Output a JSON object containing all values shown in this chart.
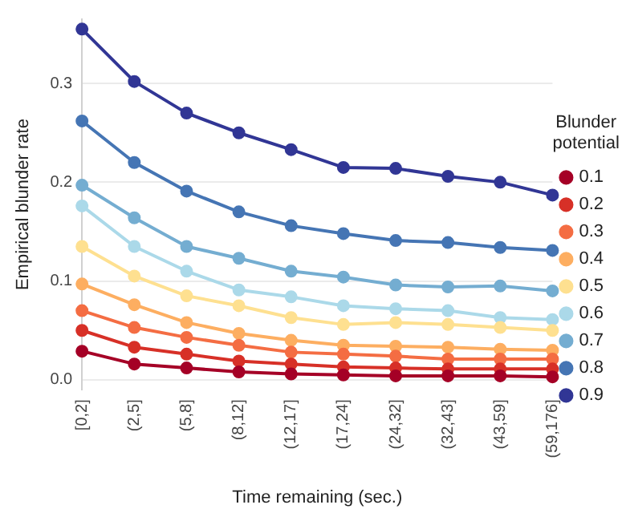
{
  "chart_data": {
    "type": "line",
    "xlabel": "Time remaining (sec.)",
    "ylabel": "Empirical blunder rate",
    "legend_title": "Blunder potential",
    "legend": "right",
    "grid": "y",
    "marker": "circle",
    "line_style": "solid",
    "categories": [
      "[0,2]",
      "(2,5]",
      "(5,8]",
      "(8,12]",
      "(12,17]",
      "(17,24]",
      "(24,32]",
      "(32,43]",
      "(43,59]",
      "(59,176]"
    ],
    "ylim": [
      -0.01,
      0.365
    ],
    "yticks": [
      {
        "value": 0,
        "label": "0.0"
      },
      0.1,
      0.2,
      0.3
    ],
    "series": [
      {
        "name": "0.1",
        "color": "#a50026",
        "values": [
          0.029,
          0.016,
          0.012,
          0.008,
          0.006,
          0.005,
          0.004,
          0.004,
          0.004,
          0.003
        ]
      },
      {
        "name": "0.2",
        "color": "#d73027",
        "values": [
          0.05,
          0.033,
          0.026,
          0.019,
          0.016,
          0.013,
          0.012,
          0.011,
          0.011,
          0.011
        ]
      },
      {
        "name": "0.3",
        "color": "#f46d43",
        "values": [
          0.07,
          0.053,
          0.043,
          0.035,
          0.028,
          0.026,
          0.024,
          0.021,
          0.021,
          0.021
        ]
      },
      {
        "name": "0.4",
        "color": "#fdae61",
        "values": [
          0.097,
          0.076,
          0.058,
          0.047,
          0.04,
          0.035,
          0.034,
          0.033,
          0.031,
          0.03
        ]
      },
      {
        "name": "0.5",
        "color": "#fee090",
        "values": [
          0.135,
          0.105,
          0.085,
          0.075,
          0.063,
          0.056,
          0.058,
          0.056,
          0.053,
          0.05
        ]
      },
      {
        "name": "0.6",
        "color": "#abd9e9",
        "values": [
          0.176,
          0.135,
          0.11,
          0.091,
          0.084,
          0.075,
          0.072,
          0.07,
          0.063,
          0.061
        ]
      },
      {
        "name": "0.7",
        "color": "#74add1",
        "values": [
          0.197,
          0.164,
          0.135,
          0.123,
          0.11,
          0.104,
          0.096,
          0.094,
          0.095,
          0.09
        ]
      },
      {
        "name": "0.8",
        "color": "#4575b4",
        "values": [
          0.262,
          0.22,
          0.191,
          0.17,
          0.156,
          0.148,
          0.141,
          0.139,
          0.134,
          0.131
        ]
      },
      {
        "name": "0.9",
        "color": "#313695",
        "values": [
          0.355,
          0.302,
          0.27,
          0.25,
          0.233,
          0.215,
          0.214,
          0.206,
          0.2,
          0.187
        ]
      }
    ]
  }
}
